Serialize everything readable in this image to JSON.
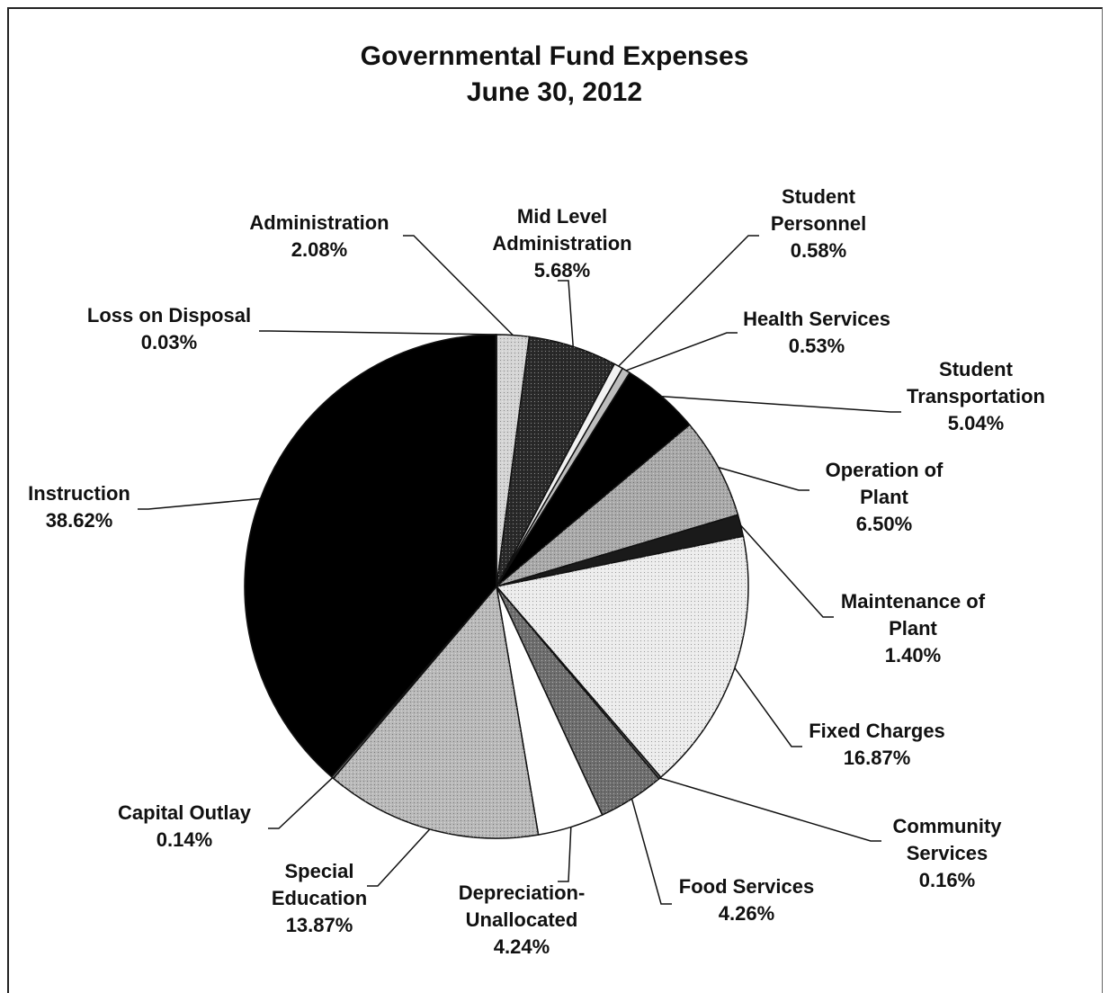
{
  "chart_data": {
    "type": "pie",
    "title": "Governmental Fund Expenses",
    "subtitle": "June 30, 2012",
    "start_category": "Administration",
    "direction": "clockwise",
    "slices": [
      {
        "label_lines": [
          "Administration"
        ],
        "value_text": "2.08%",
        "value": 2.08,
        "fill": "#d4d4d4",
        "hatch": true
      },
      {
        "label_lines": [
          "Mid Level",
          "Administration"
        ],
        "value_text": "5.68%",
        "value": 5.68,
        "fill": "#2a2a2a",
        "hatch": true
      },
      {
        "label_lines": [
          "Student",
          "Personnel"
        ],
        "value_text": "0.58%",
        "value": 0.58,
        "fill": "#f2f2f2",
        "hatch": false
      },
      {
        "label_lines": [
          "Health Services"
        ],
        "value_text": "0.53%",
        "value": 0.53,
        "fill": "#bdbdbd",
        "hatch": false
      },
      {
        "label_lines": [
          "Student",
          "Transportation"
        ],
        "value_text": "5.04%",
        "value": 5.04,
        "fill": "#000000",
        "hatch": false
      },
      {
        "label_lines": [
          "Operation of",
          "Plant"
        ],
        "value_text": "6.50%",
        "value": 6.5,
        "fill": "#a9a9a9",
        "hatch": true
      },
      {
        "label_lines": [
          "Maintenance of",
          "Plant"
        ],
        "value_text": "1.40%",
        "value": 1.4,
        "fill": "#1a1a1a",
        "hatch": false
      },
      {
        "label_lines": [
          "Fixed Charges"
        ],
        "value_text": "16.87%",
        "value": 16.87,
        "fill": "#ececec",
        "hatch": true
      },
      {
        "label_lines": [
          "Community",
          "Services"
        ],
        "value_text": "0.16%",
        "value": 0.16,
        "fill": "#555555",
        "hatch": false
      },
      {
        "label_lines": [
          "Food Services"
        ],
        "value_text": "4.26%",
        "value": 4.26,
        "fill": "#6e6e6e",
        "hatch": true
      },
      {
        "label_lines": [
          "Depreciation-",
          "Unallocated"
        ],
        "value_text": "4.24%",
        "value": 4.24,
        "fill": "#ffffff",
        "hatch": false
      },
      {
        "label_lines": [
          "Special",
          "Education"
        ],
        "value_text": "13.87%",
        "value": 13.87,
        "fill": "#b9b9b9",
        "hatch": true
      },
      {
        "label_lines": [
          "Capital Outlay"
        ],
        "value_text": "0.14%",
        "value": 0.14,
        "fill": "#7a7a7a",
        "hatch": false
      },
      {
        "label_lines": [
          "Instruction"
        ],
        "value_text": "38.62%",
        "value": 38.62,
        "fill": "#000000",
        "hatch": false
      },
      {
        "label_lines": [
          "Loss on Disposal"
        ],
        "value_text": "0.03%",
        "value": 0.03,
        "fill": "#888888",
        "hatch": false
      }
    ],
    "legend": "none (callout labels)"
  }
}
